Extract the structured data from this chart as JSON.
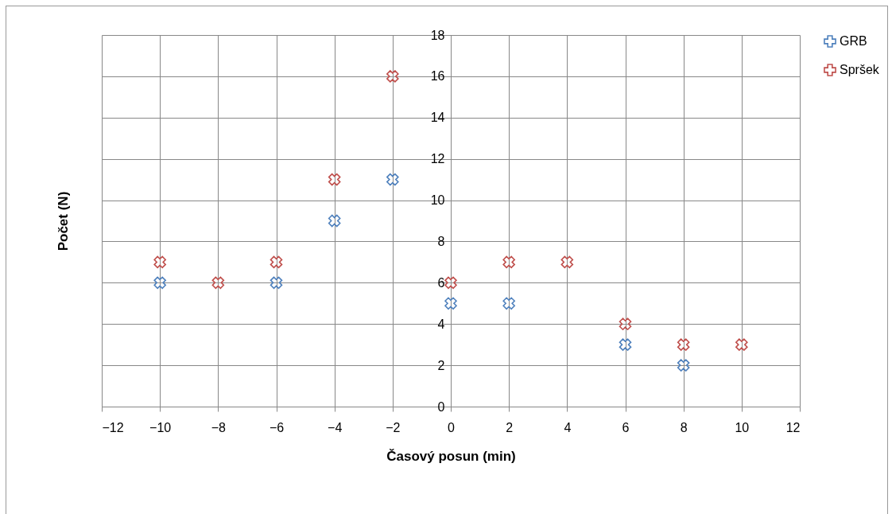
{
  "chart_data": {
    "type": "scatter",
    "xlabel": "Časový posun (min)",
    "ylabel": "Počet (N)",
    "x": [
      -10,
      -8,
      -6,
      -4,
      -2,
      0,
      2,
      4,
      6,
      8,
      10
    ],
    "series": [
      {
        "name": "GRB",
        "color": "#4f81bd",
        "values": [
          6,
          null,
          6,
          9,
          11,
          5,
          5,
          null,
          3,
          2,
          null
        ]
      },
      {
        "name": "Spršek",
        "color": "#c0504d",
        "values": [
          7,
          6,
          7,
          11,
          16,
          6,
          7,
          7,
          4,
          3,
          3
        ]
      }
    ],
    "xlim": [
      -12,
      12
    ],
    "xticks": [
      -12,
      -10,
      -8,
      -6,
      -4,
      -2,
      0,
      2,
      4,
      6,
      8,
      10,
      12
    ],
    "ylim": [
      0,
      18
    ],
    "yticks": [
      0,
      2,
      4,
      6,
      8,
      10,
      12,
      14,
      16,
      18
    ],
    "grid": true,
    "legend": "right",
    "marker": "cross"
  }
}
